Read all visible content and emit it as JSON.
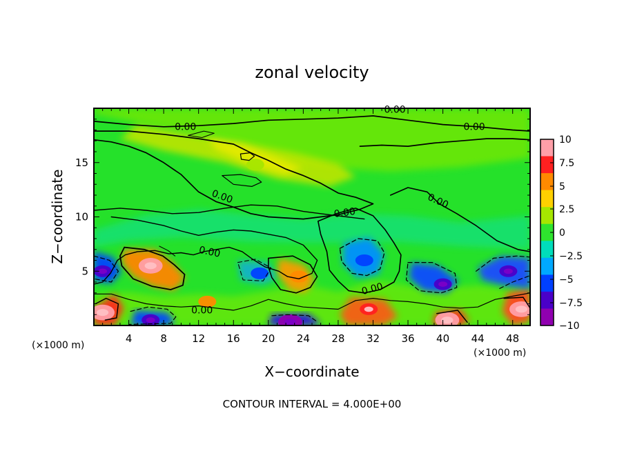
{
  "chart_data": {
    "type": "heatmap",
    "title": "zonal velocity",
    "xlabel": "X−coordinate",
    "ylabel": "Z−coordinate",
    "x_ticks": [
      4,
      8,
      12,
      16,
      20,
      24,
      28,
      32,
      36,
      40,
      44,
      48
    ],
    "y_ticks": [
      5,
      10,
      15
    ],
    "x_unit_left": "(×1000 m)",
    "x_unit_right": "(×1000 m)",
    "xlim": [
      0,
      50
    ],
    "ylim": [
      0,
      20
    ],
    "footnote": "CONTOUR INTERVAL = 4.000E+00",
    "colorbar": {
      "ticks": [
        "10",
        "7.5",
        "5",
        "2.5",
        "0",
        "−2.5",
        "−5",
        "−7.5",
        "−10"
      ],
      "values": [
        10,
        7.5,
        5,
        2.5,
        0,
        -2.5,
        -5,
        -7.5,
        -10
      ],
      "colors": [
        "#ff9fa8",
        "#ff2020",
        "#ff8a00",
        "#ffd000",
        "#a6e600",
        "#2ee42e",
        "#00ddbb",
        "#00a8ff",
        "#0040ff",
        "#4a00c8",
        "#9000b0"
      ]
    },
    "contour_labels": [
      "0.00",
      "0.00",
      "0.00",
      "0.00",
      "0.00",
      "0.00",
      "0.00",
      "0.00",
      "0.00"
    ],
    "features": [
      {
        "kind": "positive",
        "x": 6.5,
        "z": 5.5,
        "value": 10
      },
      {
        "kind": "positive",
        "x": 1.0,
        "z": 1.2,
        "value": 10
      },
      {
        "kind": "positive",
        "x": 23.5,
        "z": 4.5,
        "value": 5
      },
      {
        "kind": "positive",
        "x": 31.5,
        "z": 1.5,
        "value": 7.5
      },
      {
        "kind": "positive",
        "x": 40.5,
        "z": 0.5,
        "value": 10
      },
      {
        "kind": "positive",
        "x": 49.0,
        "z": 1.5,
        "value": 10
      },
      {
        "kind": "positive",
        "x": 13.0,
        "z": 2.2,
        "value": 5
      },
      {
        "kind": "positive",
        "x": 18.5,
        "z": 14.8,
        "value": 2.5
      },
      {
        "kind": "negative",
        "x": 31.0,
        "z": 6.0,
        "value": -5
      },
      {
        "kind": "negative",
        "x": 1.0,
        "z": 5.0,
        "value": -7.5
      },
      {
        "kind": "negative",
        "x": 6.5,
        "z": 0.5,
        "value": -7.5
      },
      {
        "kind": "negative",
        "x": 22.5,
        "z": 0.3,
        "value": -10
      },
      {
        "kind": "negative",
        "x": 40.0,
        "z": 3.8,
        "value": -7.5
      },
      {
        "kind": "negative",
        "x": 47.5,
        "z": 5.0,
        "value": -7.5
      },
      {
        "kind": "negative",
        "x": 19.0,
        "z": 4.8,
        "value": -5
      }
    ]
  }
}
